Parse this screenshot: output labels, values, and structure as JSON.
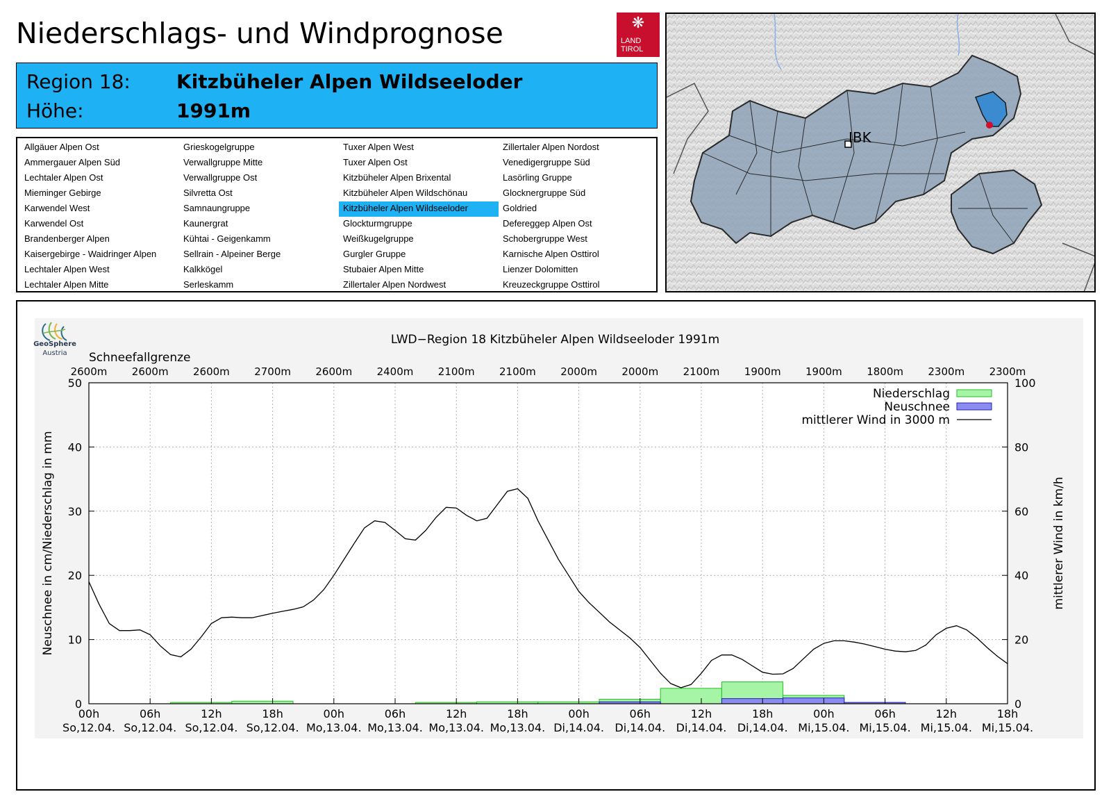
{
  "header": {
    "title": "Niederschlags- und Windprognose",
    "logo_line1": "LAND",
    "logo_line2": "TIROL"
  },
  "region": {
    "region_label": "Region 18:",
    "region_name": "Kitzbüheler Alpen Wildseeloder",
    "height_label": "Höhe:",
    "height_value": "1991m"
  },
  "region_list": {
    "columns": [
      [
        "Allgäuer Alpen Ost",
        "Ammergauer Alpen Süd",
        "Lechtaler Alpen Ost",
        "Mieminger Gebirge",
        "Karwendel West",
        "Karwendel Ost",
        "Brandenberger Alpen",
        "Kaisergebirge - Waidringer Alpen",
        "Lechtaler Alpen West",
        "Lechtaler Alpen Mitte"
      ],
      [
        "Grieskogelgruppe",
        "Verwallgruppe Mitte",
        "Verwallgruppe Ost",
        "Silvretta Ost",
        "Samnaungruppe",
        "Kaunergrat",
        "Kühtai - Geigenkamm",
        "Sellrain - Alpeiner Berge",
        "Kalkkögel",
        "Serleskamm"
      ],
      [
        "Tuxer Alpen West",
        "Tuxer Alpen Ost",
        "Kitzbüheler Alpen Brixental",
        "Kitzbüheler Alpen Wildschönau",
        "Kitzbüheler Alpen Wildseeloder",
        "Glockturmgruppe",
        "Weißkugelgruppe",
        "Gurgler Gruppe",
        "Stubaier Alpen Mitte",
        "Zillertaler Alpen Nordwest"
      ],
      [
        "Zillertaler Alpen Nordost",
        "Venedigergruppe Süd",
        "Lasörling Gruppe",
        "Glocknergruppe Süd",
        "Goldried",
        "Defereggер Alpen Ost",
        "Schobergruppe West",
        "Karnische Alpen Osttirol",
        "Lienzer Dolomitten",
        "Kreuzeckgruppe Osttirol"
      ]
    ],
    "selected": "Kitzbüheler Alpen Wildseeloder"
  },
  "map": {
    "city_label": "IBK"
  },
  "geosphere": {
    "name": "GeoSphere",
    "sub": "Austria"
  },
  "colors": {
    "region_highlight": "#1eb2f4",
    "niederschlag": "#a6f5a6",
    "niederschlag_edge": "#20c020",
    "neuschnee": "#8c8cf0",
    "neuschnee_edge": "#2020c0",
    "map_regions": "#8fa3b8",
    "map_selected": "#3b8bd0"
  },
  "chart_data": {
    "type": "bar+line",
    "title": "LWD−Region 18 Kitzbüheler Alpen Wildseeloder 1991m",
    "ylabel": "Neuschnee in cm/Niederschlag in mm",
    "y2label": "mittlerer Wind in km/h",
    "ylim": [
      0,
      50
    ],
    "y2lim": [
      0,
      100
    ],
    "yticks": [
      0,
      10,
      20,
      30,
      40,
      50
    ],
    "y2ticks": [
      0,
      20,
      40,
      60,
      80,
      100
    ],
    "grid": true,
    "legend_position": "top-right",
    "snowline_label": "Schneefallgrenze",
    "snowline": [
      "2600m",
      "2600m",
      "2600m",
      "2700m",
      "2600m",
      "2400m",
      "2100m",
      "2100m",
      "2000m",
      "2000m",
      "2100m",
      "1900m",
      "1900m",
      "1800m",
      "2300m",
      "2300m"
    ],
    "x_ticks": [
      [
        "00h",
        "So,12.04."
      ],
      [
        "06h",
        "So,12.04."
      ],
      [
        "12h",
        "So,12.04."
      ],
      [
        "18h",
        "So,12.04."
      ],
      [
        "00h",
        "Mo,13.04."
      ],
      [
        "06h",
        "Mo,13.04."
      ],
      [
        "12h",
        "Mo,13.04."
      ],
      [
        "18h",
        "Mo,13.04."
      ],
      [
        "00h",
        "Di,14.04."
      ],
      [
        "06h",
        "Di,14.04."
      ],
      [
        "12h",
        "Di,14.04."
      ],
      [
        "18h",
        "Di,14.04."
      ],
      [
        "00h",
        "Mi,15.04."
      ],
      [
        "06h",
        "Mi,15.04."
      ],
      [
        "12h",
        "Mi,15.04."
      ],
      [
        "18h",
        "Mi,15.04."
      ]
    ],
    "x_range_hours": [
      0,
      90
    ],
    "series": [
      {
        "name": "Niederschlag",
        "kind": "bar",
        "bars": [
          {
            "start": 8,
            "end": 14,
            "value": 0.2
          },
          {
            "start": 14,
            "end": 20,
            "value": 0.4
          },
          {
            "start": 32,
            "end": 38,
            "value": 0.2
          },
          {
            "start": 38,
            "end": 44,
            "value": 0.3
          },
          {
            "start": 44,
            "end": 50,
            "value": 0.3
          },
          {
            "start": 50,
            "end": 56,
            "value": 0.7
          },
          {
            "start": 56,
            "end": 62,
            "value": 2.4
          },
          {
            "start": 62,
            "end": 68,
            "value": 3.4
          },
          {
            "start": 68,
            "end": 74,
            "value": 1.3
          },
          {
            "start": 74,
            "end": 80,
            "value": 0.2
          }
        ]
      },
      {
        "name": "Neuschnee",
        "kind": "bar",
        "bars": [
          {
            "start": 50,
            "end": 56,
            "value": 0.3
          },
          {
            "start": 62,
            "end": 68,
            "value": 0.8
          },
          {
            "start": 68,
            "end": 74,
            "value": 0.9
          },
          {
            "start": 74,
            "end": 80,
            "value": 0.2
          }
        ]
      },
      {
        "name": "mittlerer Wind in 3000 m",
        "kind": "line",
        "axis": "y2",
        "x": [
          0,
          1,
          2,
          3,
          4,
          5,
          6,
          7,
          8,
          9,
          10,
          11,
          12,
          13,
          14,
          15,
          16,
          17,
          18,
          19,
          20,
          21,
          22,
          23,
          24,
          25,
          26,
          27,
          28,
          29,
          30,
          31,
          32,
          33,
          34,
          35,
          36,
          37,
          38,
          39,
          40,
          41,
          42,
          43,
          44,
          45,
          46,
          47,
          48,
          49,
          50,
          51,
          52,
          53,
          54,
          55,
          56,
          57,
          58,
          59,
          60,
          61,
          62,
          63,
          64,
          65,
          66,
          67,
          68,
          69,
          70,
          71,
          72,
          73,
          74,
          75,
          76,
          77,
          78,
          79,
          80,
          81,
          82,
          83,
          84,
          85,
          86,
          87,
          88,
          89,
          90
        ],
        "y": [
          38,
          31,
          25,
          22.8,
          22.8,
          23,
          21.5,
          18,
          15.3,
          14.6,
          17,
          20.8,
          25,
          26.8,
          27,
          26.8,
          26.8,
          27.5,
          28.2,
          28.8,
          29.4,
          30.2,
          32.3,
          35.5,
          40,
          45,
          50,
          54.8,
          57,
          56.5,
          54,
          51.4,
          51,
          54,
          58,
          61.2,
          61,
          58.7,
          57,
          57.8,
          62,
          66.2,
          67,
          64,
          57,
          51,
          45,
          40,
          35,
          31.5,
          28.5,
          25.5,
          23,
          20.5,
          17.5,
          13.5,
          9.5,
          6.3,
          5,
          6,
          9.5,
          13.5,
          15.2,
          15.2,
          13.8,
          11.8,
          9.8,
          9.2,
          9.3,
          11,
          14,
          17,
          18.8,
          19.6,
          19.6,
          19.2,
          18.6,
          17.8,
          17,
          16.4,
          16.2,
          16.6,
          18.3,
          21.5,
          23.5,
          24.3,
          23,
          20.5,
          17.5,
          14.8,
          12.5
        ]
      }
    ]
  }
}
